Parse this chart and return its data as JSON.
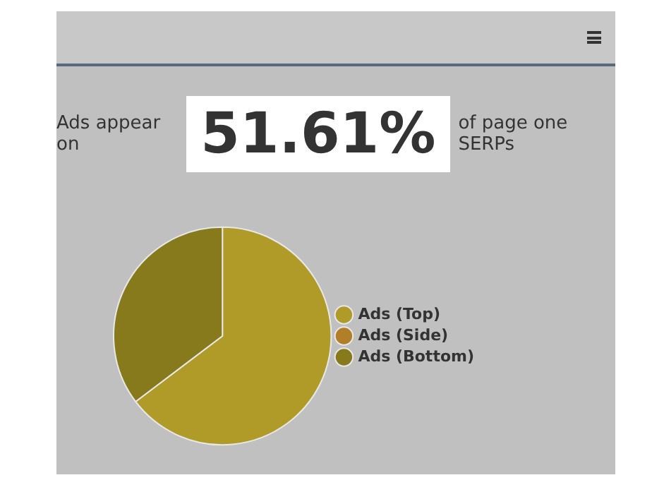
{
  "chart_data": {
    "type": "pie",
    "annotations": [
      "Ads appear on",
      "51.61%",
      "of page one SERPs"
    ],
    "categories": [
      "Ads (Top)",
      "Ads (Side)",
      "Ads (Bottom)"
    ],
    "values": [
      64.7,
      0,
      35.3
    ],
    "colors": [
      "#b09a28",
      "#b07f28",
      "#877a1c"
    ],
    "legend": "right"
  }
}
